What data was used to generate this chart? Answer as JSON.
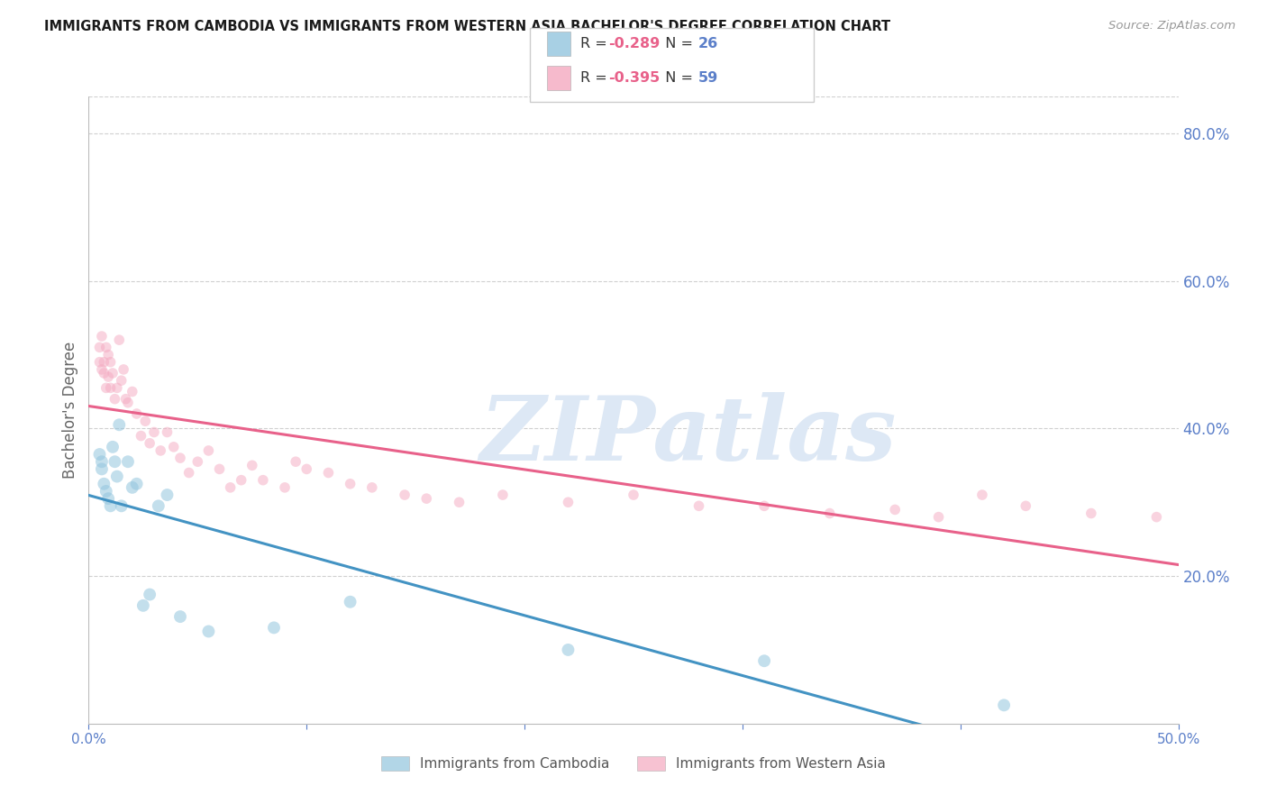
{
  "title": "IMMIGRANTS FROM CAMBODIA VS IMMIGRANTS FROM WESTERN ASIA BACHELOR'S DEGREE CORRELATION CHART",
  "source": "Source: ZipAtlas.com",
  "ylabel": "Bachelor's Degree",
  "legend_labels": [
    "Immigrants from Cambodia",
    "Immigrants from Western Asia"
  ],
  "legend_r": [
    -0.289,
    -0.395
  ],
  "legend_n": [
    26,
    59
  ],
  "color_blue": "#92c5de",
  "color_pink": "#f4a9c0",
  "color_blue_line": "#4393c3",
  "color_pink_line": "#e8618a",
  "color_axis_labels": "#5b7fc9",
  "xlim": [
    0.0,
    0.5
  ],
  "ylim": [
    0.0,
    0.85
  ],
  "x_ticks": [
    0.0,
    0.1,
    0.2,
    0.3,
    0.4,
    0.5
  ],
  "x_tick_labels": [
    "0.0%",
    "",
    "",
    "",
    "",
    "50.0%"
  ],
  "y_ticks_right": [
    0.2,
    0.4,
    0.6,
    0.8
  ],
  "y_tick_labels_right": [
    "20.0%",
    "40.0%",
    "60.0%",
    "80.0%"
  ],
  "cambodia_x": [
    0.005,
    0.006,
    0.006,
    0.007,
    0.008,
    0.009,
    0.01,
    0.011,
    0.012,
    0.013,
    0.014,
    0.015,
    0.018,
    0.02,
    0.022,
    0.025,
    0.028,
    0.032,
    0.036,
    0.042,
    0.055,
    0.085,
    0.12,
    0.22,
    0.31,
    0.42
  ],
  "cambodia_y": [
    0.365,
    0.345,
    0.355,
    0.325,
    0.315,
    0.305,
    0.295,
    0.375,
    0.355,
    0.335,
    0.405,
    0.295,
    0.355,
    0.32,
    0.325,
    0.16,
    0.175,
    0.295,
    0.31,
    0.145,
    0.125,
    0.13,
    0.165,
    0.1,
    0.085,
    0.025
  ],
  "western_asia_x": [
    0.005,
    0.005,
    0.006,
    0.006,
    0.007,
    0.007,
    0.008,
    0.008,
    0.009,
    0.009,
    0.01,
    0.01,
    0.011,
    0.012,
    0.013,
    0.014,
    0.015,
    0.016,
    0.017,
    0.018,
    0.02,
    0.022,
    0.024,
    0.026,
    0.028,
    0.03,
    0.033,
    0.036,
    0.039,
    0.042,
    0.046,
    0.05,
    0.055,
    0.06,
    0.065,
    0.07,
    0.075,
    0.08,
    0.09,
    0.095,
    0.1,
    0.11,
    0.12,
    0.13,
    0.145,
    0.155,
    0.17,
    0.19,
    0.22,
    0.25,
    0.28,
    0.31,
    0.34,
    0.37,
    0.39,
    0.41,
    0.43,
    0.46,
    0.49
  ],
  "western_asia_y": [
    0.49,
    0.51,
    0.48,
    0.525,
    0.475,
    0.49,
    0.455,
    0.51,
    0.47,
    0.5,
    0.455,
    0.49,
    0.475,
    0.44,
    0.455,
    0.52,
    0.465,
    0.48,
    0.44,
    0.435,
    0.45,
    0.42,
    0.39,
    0.41,
    0.38,
    0.395,
    0.37,
    0.395,
    0.375,
    0.36,
    0.34,
    0.355,
    0.37,
    0.345,
    0.32,
    0.33,
    0.35,
    0.33,
    0.32,
    0.355,
    0.345,
    0.34,
    0.325,
    0.32,
    0.31,
    0.305,
    0.3,
    0.31,
    0.3,
    0.31,
    0.295,
    0.295,
    0.285,
    0.29,
    0.28,
    0.31,
    0.295,
    0.285,
    0.28
  ],
  "marker_size_blue": 100,
  "marker_size_pink": 70,
  "alpha_blue": 0.55,
  "alpha_pink": 0.5,
  "grid_color": "#d0d0d0",
  "watermark": "ZIPatlas",
  "watermark_color": "#dde8f5",
  "background_color": "#ffffff",
  "figsize": [
    14.06,
    8.92
  ],
  "dpi": 100
}
